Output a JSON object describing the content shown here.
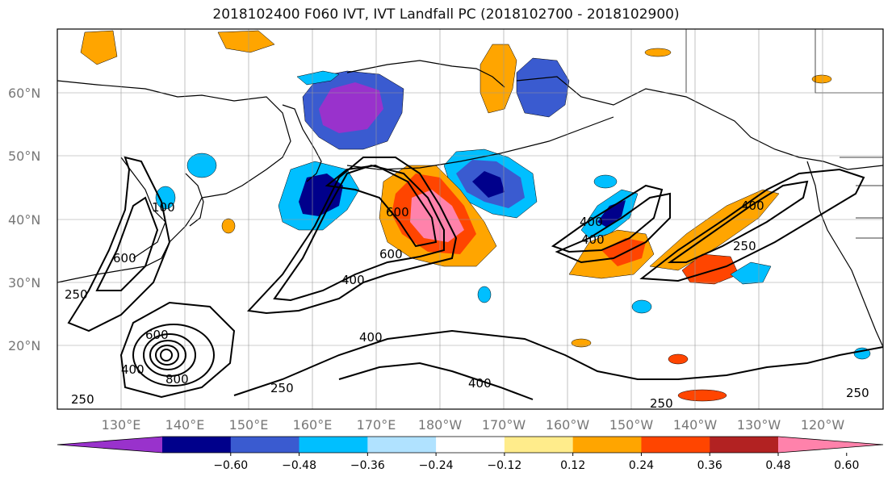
{
  "title": "2018102400 F060 IVT, IVT Landfall PC (2018102700 - 2018102900)",
  "lat_labels": [
    "60°N",
    "50°N",
    "40°N",
    "30°N",
    "20°N"
  ],
  "lon_labels": [
    "130°E",
    "140°E",
    "150°E",
    "160°E",
    "170°E",
    "180°W",
    "170°W",
    "160°W",
    "150°W",
    "140°W",
    "130°W",
    "120°W"
  ],
  "contour_labels": [
    "600",
    "600",
    "400",
    "600",
    "400",
    "400",
    "400",
    "250",
    "600",
    "400",
    "250",
    "250",
    "250",
    "250",
    "400",
    "100",
    "800",
    "400",
    "250"
  ],
  "colorbar": {
    "ticks": [
      "−0.60",
      "−0.48",
      "−0.36",
      "−0.24",
      "−0.12",
      "0.12",
      "0.24",
      "0.36",
      "0.48",
      "0.60"
    ],
    "colors": [
      "#9932cc",
      "#00008b",
      "#3a5bd0",
      "#00bfff",
      "#b0e2ff",
      "#ffffff",
      "#ffec8b",
      "#ffa500",
      "#ff4500",
      "#b22222",
      "#ff82ab"
    ]
  }
}
